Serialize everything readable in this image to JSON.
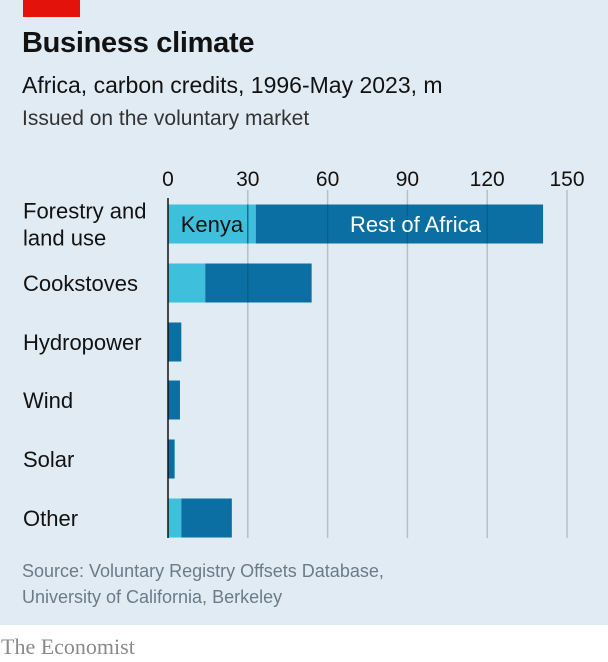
{
  "header": {
    "title": "Business climate",
    "subtitle": "Africa, carbon credits, 1996-May 2023, m",
    "note": "Issued on the voluntary market"
  },
  "footer": {
    "source_line1": "Source: Voluntary Registry Offsets Database,",
    "source_line2": "University of California, Berkeley",
    "brand": "The Economist"
  },
  "colors": {
    "kenya": "#3ebfdb",
    "rest_of_africa": "#0b6fa3",
    "panel": "#e0ebf4",
    "accent": "#e3120b",
    "grid": "#b7bfc6"
  },
  "chart_data": {
    "type": "bar",
    "orientation": "horizontal",
    "stacked": true,
    "categories": [
      [
        "Forestry and",
        "land use"
      ],
      [
        "Cookstoves"
      ],
      [
        "Hydropower"
      ],
      [
        "Wind"
      ],
      [
        "Solar"
      ],
      [
        "Other"
      ]
    ],
    "series": [
      {
        "name": "Kenya",
        "values": [
          33,
          14,
          0,
          0,
          0,
          5
        ]
      },
      {
        "name": "Rest of Africa",
        "values": [
          108,
          40,
          5,
          4.5,
          2.5,
          19
        ]
      }
    ],
    "xlim": [
      0,
      150
    ],
    "xticks": [
      0,
      30,
      60,
      90,
      120,
      150
    ],
    "grid": true,
    "legend": "inline labels in first bar"
  }
}
